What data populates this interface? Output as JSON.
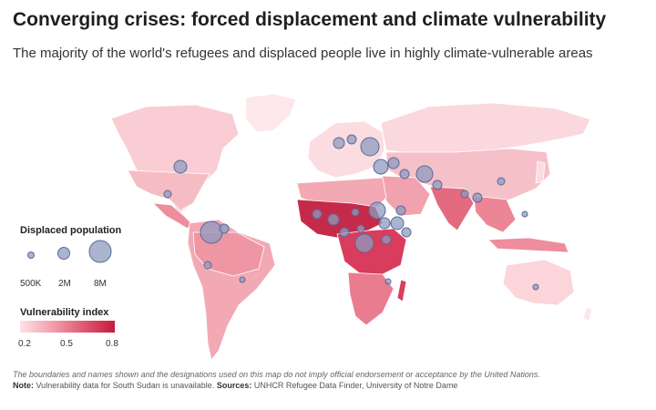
{
  "title": "Converging crises: forced displacement and climate vulnerability",
  "subtitle": "The majority of the world's refugees and displaced people live in highly climate-vulnerable areas",
  "legend": {
    "size_title": "Displaced population",
    "size_labels": [
      "500K",
      "2M",
      "8M"
    ],
    "vulnerability_title": "Vulnerability index",
    "vulnerability_labels": [
      "0.2",
      "0.5",
      "0.8"
    ]
  },
  "footnote": "The boundaries and names shown and the designations used on this map do not imply official endorsement or acceptance by the United Nations.",
  "note": {
    "note_label": "Note:",
    "note_text": "Vulnerability data for South Sudan is unavailable.",
    "sources_label": "Sources:",
    "sources_text": "UNHCR Refugee Data Finder, University of Notre Dame"
  },
  "colors": {
    "low_vulnerability": "#fde2e5",
    "mid_vulnerability": "#f3a1ad",
    "high_vulnerability": "#c51b3e",
    "bubble_fill": "#8f9bbf",
    "bubble_stroke": "#5a6a9a"
  }
}
